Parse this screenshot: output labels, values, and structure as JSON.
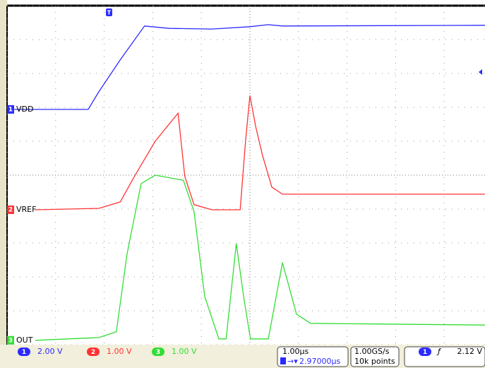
{
  "chart_data": {
    "type": "line",
    "xlim": [
      0,
      10
    ],
    "ylim": [
      0,
      10
    ],
    "xticks": [
      0,
      1,
      2,
      3,
      4,
      5,
      6,
      7,
      8,
      9,
      10
    ],
    "yticks": [
      0,
      1,
      2,
      3,
      4,
      5,
      6,
      7,
      8,
      9,
      10
    ],
    "grid": true,
    "series": [
      {
        "name": "VDD",
        "channel": "1",
        "scale": "2.00 V",
        "color": "#2b2bff",
        "x": [
          0.15,
          1.67,
          1.89,
          2.33,
          2.83,
          2.98,
          3.34,
          4.22,
          5.0,
          5.38,
          5.67,
          9.84
        ],
        "values": [
          6.94,
          6.94,
          7.46,
          8.4,
          9.4,
          9.38,
          9.33,
          9.31,
          9.38,
          9.44,
          9.4,
          9.42
        ]
      },
      {
        "name": "VREF",
        "channel": "2",
        "scale": "1.00 V",
        "color": "#ff3333",
        "x": [
          0.58,
          1.89,
          2.33,
          2.62,
          3.05,
          3.52,
          3.66,
          3.85,
          4.22,
          4.8,
          4.91,
          5.0,
          5.12,
          5.26,
          5.45,
          5.67,
          9.84
        ],
        "values": [
          3.98,
          4.02,
          4.21,
          4.96,
          6.0,
          6.83,
          4.96,
          4.13,
          3.98,
          3.98,
          6.0,
          7.35,
          6.42,
          5.58,
          4.65,
          4.44,
          4.44
        ]
      },
      {
        "name": "OUT",
        "channel": "3",
        "scale": "1.00 V",
        "color": "#33dd33",
        "x": [
          0.58,
          1.89,
          2.25,
          2.47,
          2.76,
          3.05,
          3.63,
          3.85,
          4.07,
          4.36,
          4.51,
          4.72,
          4.87,
          5.01,
          5.38,
          5.67,
          5.96,
          6.25,
          9.84
        ],
        "values": [
          0.13,
          0.21,
          0.38,
          2.67,
          4.75,
          5.0,
          4.85,
          3.92,
          1.42,
          0.17,
          0.17,
          2.98,
          1.42,
          0.17,
          0.17,
          2.42,
          0.9,
          0.63,
          0.58
        ]
      }
    ],
    "timebase": "1.00µs",
    "trigger_position": "2.97000µs",
    "sample_rate": "1.00GS/s",
    "record_length": "10k points",
    "trigger_channel": "1",
    "trigger_level": "2.12 V"
  }
}
